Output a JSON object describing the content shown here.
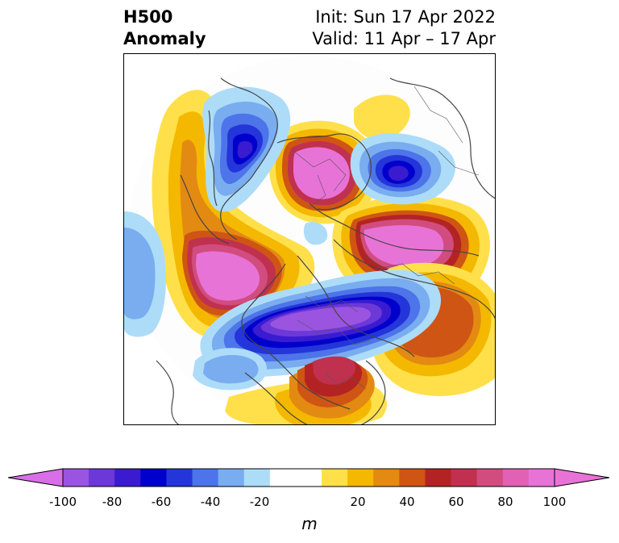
{
  "header": {
    "title_line1": "H500",
    "title_line2": "Anomaly",
    "init_text": "Init: Sun 17 Apr 2022",
    "valid_text": "Valid: 11 Apr – 17 Apr"
  },
  "colorbar": {
    "unit": "m",
    "ticks": [
      "-100",
      "-80",
      "-60",
      "-40",
      "-20",
      "20",
      "40",
      "60",
      "80",
      "100"
    ],
    "levels": [
      -100,
      -90,
      -80,
      -70,
      -60,
      -50,
      -40,
      -30,
      -20,
      -10,
      10,
      20,
      30,
      40,
      50,
      60,
      70,
      80,
      90,
      100
    ],
    "colors": [
      "#9a54e0",
      "#6c38d8",
      "#3a1bd0",
      "#0000cc",
      "#2435d9",
      "#4d74e8",
      "#79adf0",
      "#addcf9",
      "#ffffff",
      "#ffffff",
      "#ffe04a",
      "#f4b800",
      "#e38a12",
      "#cf5514",
      "#b42324",
      "#c0314f",
      "#d14c7f",
      "#df62b5",
      "#e873d7"
    ],
    "extend_min_color": "#d86fe8",
    "extend_max_color": "#e873d7"
  }
}
